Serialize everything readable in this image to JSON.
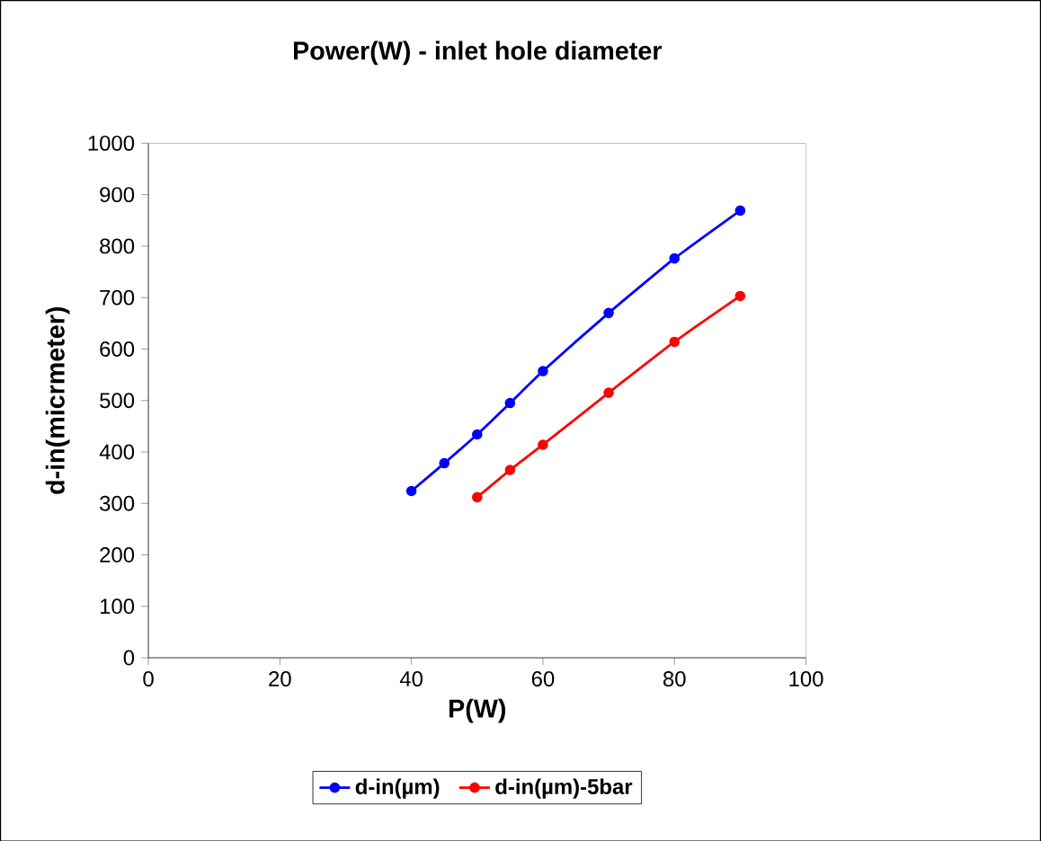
{
  "chart_data": {
    "type": "line",
    "title": "Power(W) - inlet hole diameter",
    "xlabel": "P(W)",
    "ylabel": "d-in(micrmeter)",
    "xlim": [
      0,
      100
    ],
    "xticks": [
      0,
      20,
      40,
      60,
      80,
      100
    ],
    "ylim": [
      0,
      1000
    ],
    "yticks": [
      0,
      100,
      200,
      300,
      400,
      500,
      600,
      700,
      800,
      900,
      1000
    ],
    "grid": false,
    "legend": "bottom",
    "marker": "circle",
    "line_style": "solid",
    "series": [
      {
        "name": "d-in(µm)",
        "color": "#0000ff",
        "x": [
          40,
          45,
          50,
          55,
          60,
          70,
          80,
          90
        ],
        "values": [
          324,
          378,
          434,
          495,
          557,
          670,
          776,
          869
        ]
      },
      {
        "name": "d-in(µm)-5bar",
        "color": "#ff0000",
        "x": [
          50,
          55,
          60,
          70,
          80,
          90
        ],
        "values": [
          312,
          365,
          414,
          515,
          614,
          703
        ]
      }
    ]
  }
}
